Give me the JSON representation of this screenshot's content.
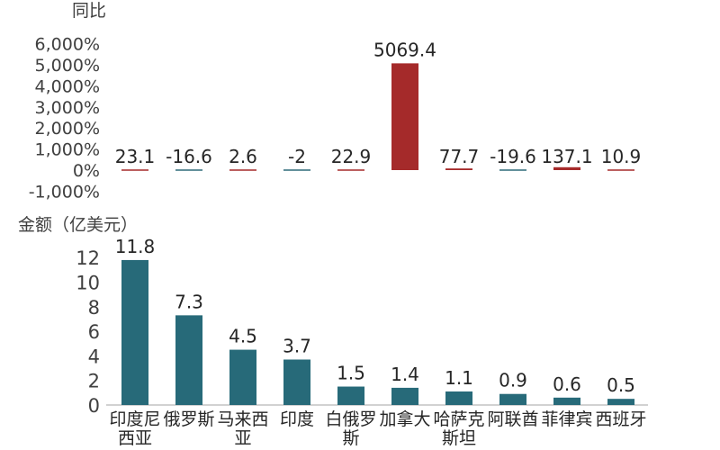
{
  "chart_data": [
    {
      "type": "bar",
      "title": "同比",
      "categories": [
        "印度尼西亚",
        "俄罗斯",
        "马来西亚",
        "印度",
        "白俄罗斯",
        "加拿大",
        "哈萨克斯坦",
        "阿联酋",
        "菲律宾",
        "西班牙"
      ],
      "values": [
        23.1,
        -16.6,
        2.6,
        -2,
        22.9,
        5069.4,
        77.7,
        -19.6,
        137.1,
        10.9
      ],
      "value_labels": [
        "23.1",
        "-16.6",
        "2.6",
        "-2",
        "22.9",
        "5069.4",
        "77.7",
        "-19.6",
        "137.1",
        "10.9"
      ],
      "yticks": [
        -1000,
        0,
        1000,
        2000,
        3000,
        4000,
        5000,
        6000
      ],
      "ytick_labels": [
        "-1,000%",
        "0%",
        "1,000%",
        "2,000%",
        "3,000%",
        "4,000%",
        "5,000%",
        "6,000%"
      ],
      "ylim": [
        -1000,
        6000
      ],
      "colors": {
        "positive": "#a52a2a",
        "negative": "#2e6b7a"
      },
      "grid": false,
      "legend": "none"
    },
    {
      "type": "bar",
      "title": "金额（亿美元）",
      "categories": [
        "印度尼西亚",
        "俄罗斯",
        "马来西亚",
        "印度",
        "白俄罗斯",
        "加拿大",
        "哈萨克斯坦",
        "阿联酋",
        "菲律宾",
        "西班牙"
      ],
      "category_lines": [
        [
          "印度尼",
          "西亚"
        ],
        [
          "俄罗斯"
        ],
        [
          "马来西",
          "亚"
        ],
        [
          "印度"
        ],
        [
          "白俄罗",
          "斯"
        ],
        [
          "加拿大"
        ],
        [
          "哈萨克",
          "斯坦"
        ],
        [
          "阿联酋"
        ],
        [
          "菲律宾"
        ],
        [
          "西班牙"
        ]
      ],
      "values": [
        11.8,
        7.3,
        4.5,
        3.7,
        1.5,
        1.4,
        1.1,
        0.9,
        0.6,
        0.5
      ],
      "value_labels": [
        "11.8",
        "7.3",
        "4.5",
        "3.7",
        "1.5",
        "1.4",
        "1.1",
        "0.9",
        "0.6",
        "0.5"
      ],
      "yticks": [
        0,
        2,
        4,
        6,
        8,
        10,
        12
      ],
      "ytick_labels": [
        "0",
        "2",
        "4",
        "6",
        "8",
        "10",
        "12"
      ],
      "ylim": [
        0,
        13
      ],
      "colors": {
        "bar": "#276a79"
      },
      "grid": false,
      "legend": "none"
    }
  ]
}
